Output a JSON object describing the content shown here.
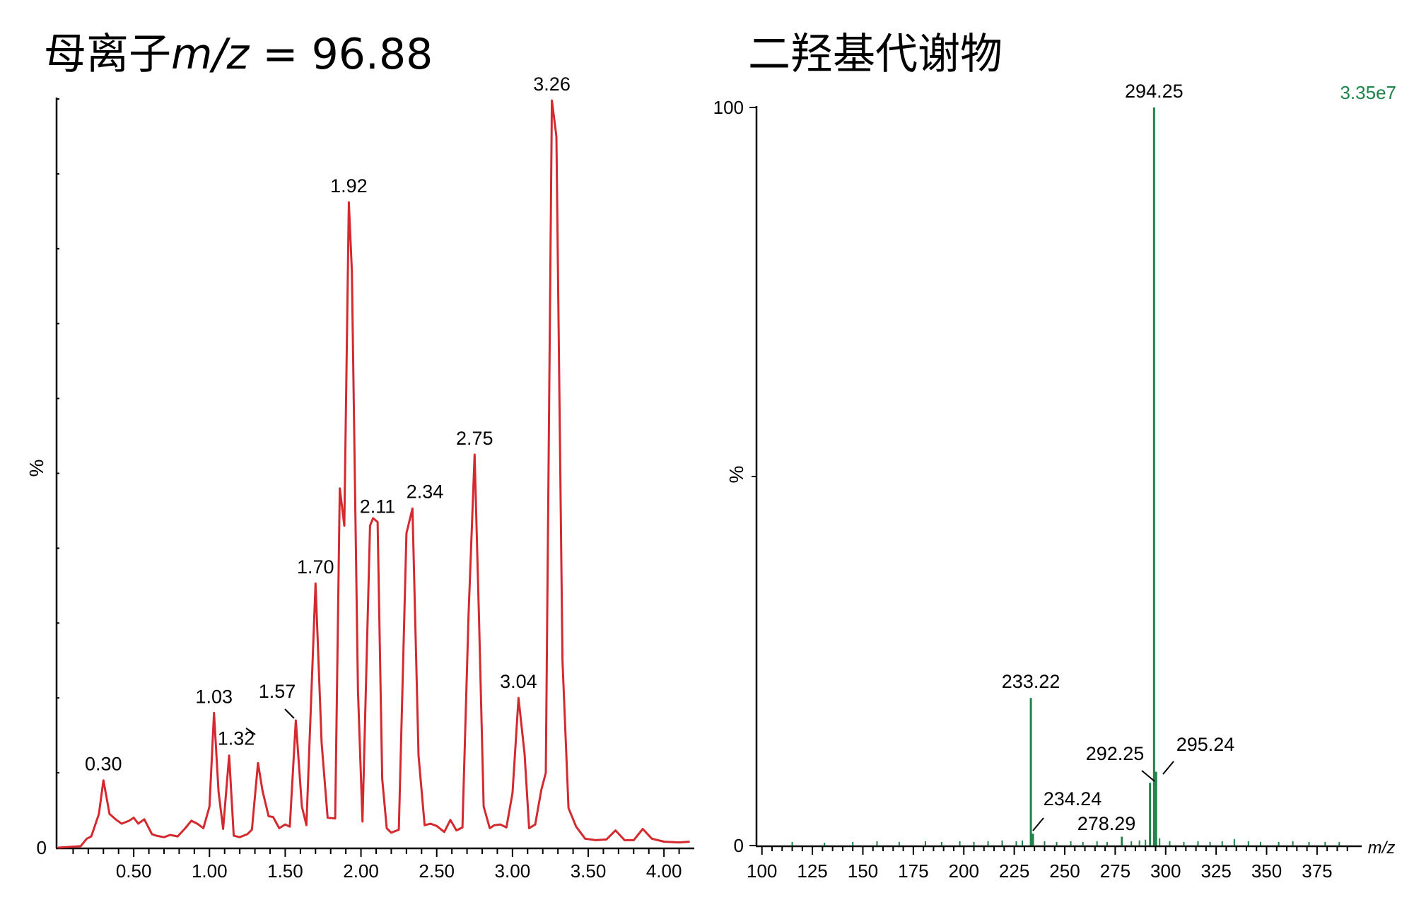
{
  "titles": {
    "left_prefix": "母离子",
    "left_mz": "m/z",
    "left_suffix": "= 96.88",
    "right": "二羟基代谢物"
  },
  "chart_data": [
    {
      "type": "line",
      "title": "母离子m/z = 96.88",
      "ylabel": "%",
      "xlabel": "",
      "xlim": [
        0,
        4.2
      ],
      "ylim": [
        0,
        100
      ],
      "x_ticks": [
        "0.50",
        "1.00",
        "1.50",
        "2.00",
        "2.50",
        "3.00",
        "3.50",
        "4.00"
      ],
      "y_ticks": [
        "0"
      ],
      "line_color": "#d42a2f",
      "x": [
        0.0,
        0.15,
        0.19,
        0.22,
        0.27,
        0.3,
        0.34,
        0.38,
        0.42,
        0.47,
        0.5,
        0.53,
        0.57,
        0.62,
        0.65,
        0.7,
        0.74,
        0.79,
        0.84,
        0.88,
        0.92,
        0.96,
        1.0,
        1.03,
        1.06,
        1.09,
        1.13,
        1.16,
        1.2,
        1.25,
        1.28,
        1.32,
        1.35,
        1.39,
        1.42,
        1.46,
        1.5,
        1.53,
        1.57,
        1.61,
        1.64,
        1.7,
        1.74,
        1.78,
        1.83,
        1.86,
        1.89,
        1.92,
        1.94,
        1.98,
        2.01,
        2.06,
        2.08,
        2.11,
        2.14,
        2.17,
        2.2,
        2.25,
        2.3,
        2.34,
        2.38,
        2.42,
        2.46,
        2.5,
        2.55,
        2.59,
        2.63,
        2.67,
        2.71,
        2.75,
        2.78,
        2.81,
        2.85,
        2.88,
        2.92,
        2.96,
        3.0,
        3.04,
        3.08,
        3.11,
        3.15,
        3.19,
        3.22,
        3.26,
        3.29,
        3.33,
        3.37,
        3.42,
        3.48,
        3.55,
        3.62,
        3.68,
        3.74,
        3.8,
        3.86,
        3.92,
        4.0,
        4.1,
        4.17
      ],
      "y": [
        0.0,
        0.2,
        1.2,
        1.5,
        4.5,
        9.0,
        4.5,
        3.8,
        3.2,
        3.6,
        4.0,
        3.2,
        3.8,
        1.8,
        1.6,
        1.4,
        1.7,
        1.5,
        2.6,
        3.6,
        3.2,
        2.6,
        5.5,
        18.0,
        7.5,
        2.5,
        12.3,
        1.6,
        1.4,
        1.8,
        2.4,
        11.3,
        7.6,
        4.2,
        4.1,
        2.6,
        3.1,
        2.8,
        17.0,
        5.5,
        3.0,
        35.3,
        14.0,
        4.0,
        3.9,
        48.0,
        43.0,
        86.2,
        77.0,
        21.0,
        3.5,
        43.0,
        44.0,
        43.5,
        9.2,
        2.6,
        2.0,
        2.4,
        42.0,
        45.3,
        12.3,
        3.0,
        3.2,
        2.9,
        2.1,
        3.7,
        2.3,
        2.7,
        31.0,
        52.5,
        30.0,
        5.5,
        2.6,
        3.0,
        3.1,
        2.7,
        7.3,
        20.0,
        12.5,
        2.6,
        3.1,
        7.7,
        10.0,
        99.8,
        95.0,
        25.0,
        5.3,
        2.8,
        1.2,
        1.0,
        1.1,
        2.3,
        1.0,
        1.0,
        2.5,
        1.2,
        0.8,
        0.7,
        0.8
      ],
      "peak_labels": [
        {
          "x": 0.3,
          "y": 9.0,
          "text": "0.30"
        },
        {
          "x": 1.03,
          "y": 18.0,
          "text": "1.03"
        },
        {
          "x": 1.32,
          "y": 11.3,
          "text": "1.32"
        },
        {
          "x": 1.57,
          "y": 17.0,
          "text": "1.57"
        },
        {
          "x": 1.7,
          "y": 35.3,
          "text": "1.70"
        },
        {
          "x": 1.92,
          "y": 86.2,
          "text": "1.92"
        },
        {
          "x": 2.11,
          "y": 43.5,
          "text": "2.11"
        },
        {
          "x": 2.34,
          "y": 45.3,
          "text": "2.34"
        },
        {
          "x": 2.75,
          "y": 52.5,
          "text": "2.75"
        },
        {
          "x": 3.04,
          "y": 20.0,
          "text": "3.04"
        },
        {
          "x": 3.26,
          "y": 99.8,
          "text": "3.26"
        }
      ]
    },
    {
      "type": "bar",
      "title": "二羟基代谢物",
      "ylabel": "%",
      "xlabel": "m/z",
      "xlim": [
        98,
        395
      ],
      "ylim": [
        0,
        100
      ],
      "x_ticks": [
        "100",
        "125",
        "150",
        "175",
        "200",
        "225",
        "250",
        "275",
        "300",
        "325",
        "350",
        "375"
      ],
      "y_ticks": [
        "0",
        "100"
      ],
      "intensity_label": "3.35e7",
      "bar_color": "#1e8449",
      "peaks": [
        {
          "mz": 233.22,
          "y": 20.0,
          "label": "233.22"
        },
        {
          "mz": 234.24,
          "y": 1.6,
          "label": "234.24"
        },
        {
          "mz": 278.29,
          "y": 1.2,
          "label": "278.29"
        },
        {
          "mz": 292.25,
          "y": 8.5,
          "label": "292.25"
        },
        {
          "mz": 294.25,
          "y": 100.0,
          "label": "294.25"
        },
        {
          "mz": 295.24,
          "y": 10.0,
          "label": "295.24"
        }
      ],
      "noise": [
        {
          "mz": 115,
          "y": 0.3
        },
        {
          "mz": 131,
          "y": 0.2
        },
        {
          "mz": 145,
          "y": 0.3
        },
        {
          "mz": 157,
          "y": 0.4
        },
        {
          "mz": 168,
          "y": 0.3
        },
        {
          "mz": 181,
          "y": 0.4
        },
        {
          "mz": 189,
          "y": 0.3
        },
        {
          "mz": 198,
          "y": 0.4
        },
        {
          "mz": 205,
          "y": 0.3
        },
        {
          "mz": 212,
          "y": 0.4
        },
        {
          "mz": 219,
          "y": 0.5
        },
        {
          "mz": 226,
          "y": 0.4
        },
        {
          "mz": 229,
          "y": 0.5
        },
        {
          "mz": 240,
          "y": 0.4
        },
        {
          "mz": 246,
          "y": 0.3
        },
        {
          "mz": 253,
          "y": 0.4
        },
        {
          "mz": 259,
          "y": 0.3
        },
        {
          "mz": 266,
          "y": 0.4
        },
        {
          "mz": 271,
          "y": 0.3
        },
        {
          "mz": 283,
          "y": 0.4
        },
        {
          "mz": 287,
          "y": 0.5
        },
        {
          "mz": 290,
          "y": 0.6
        },
        {
          "mz": 297,
          "y": 0.8
        },
        {
          "mz": 302,
          "y": 0.4
        },
        {
          "mz": 309,
          "y": 0.3
        },
        {
          "mz": 316,
          "y": 0.4
        },
        {
          "mz": 322,
          "y": 0.3
        },
        {
          "mz": 328,
          "y": 0.4
        },
        {
          "mz": 334,
          "y": 0.7
        },
        {
          "mz": 341,
          "y": 0.4
        },
        {
          "mz": 347,
          "y": 0.3
        },
        {
          "mz": 356,
          "y": 0.3
        },
        {
          "mz": 363,
          "y": 0.4
        },
        {
          "mz": 371,
          "y": 0.3
        },
        {
          "mz": 379,
          "y": 0.3
        },
        {
          "mz": 386,
          "y": 0.3
        }
      ]
    }
  ]
}
